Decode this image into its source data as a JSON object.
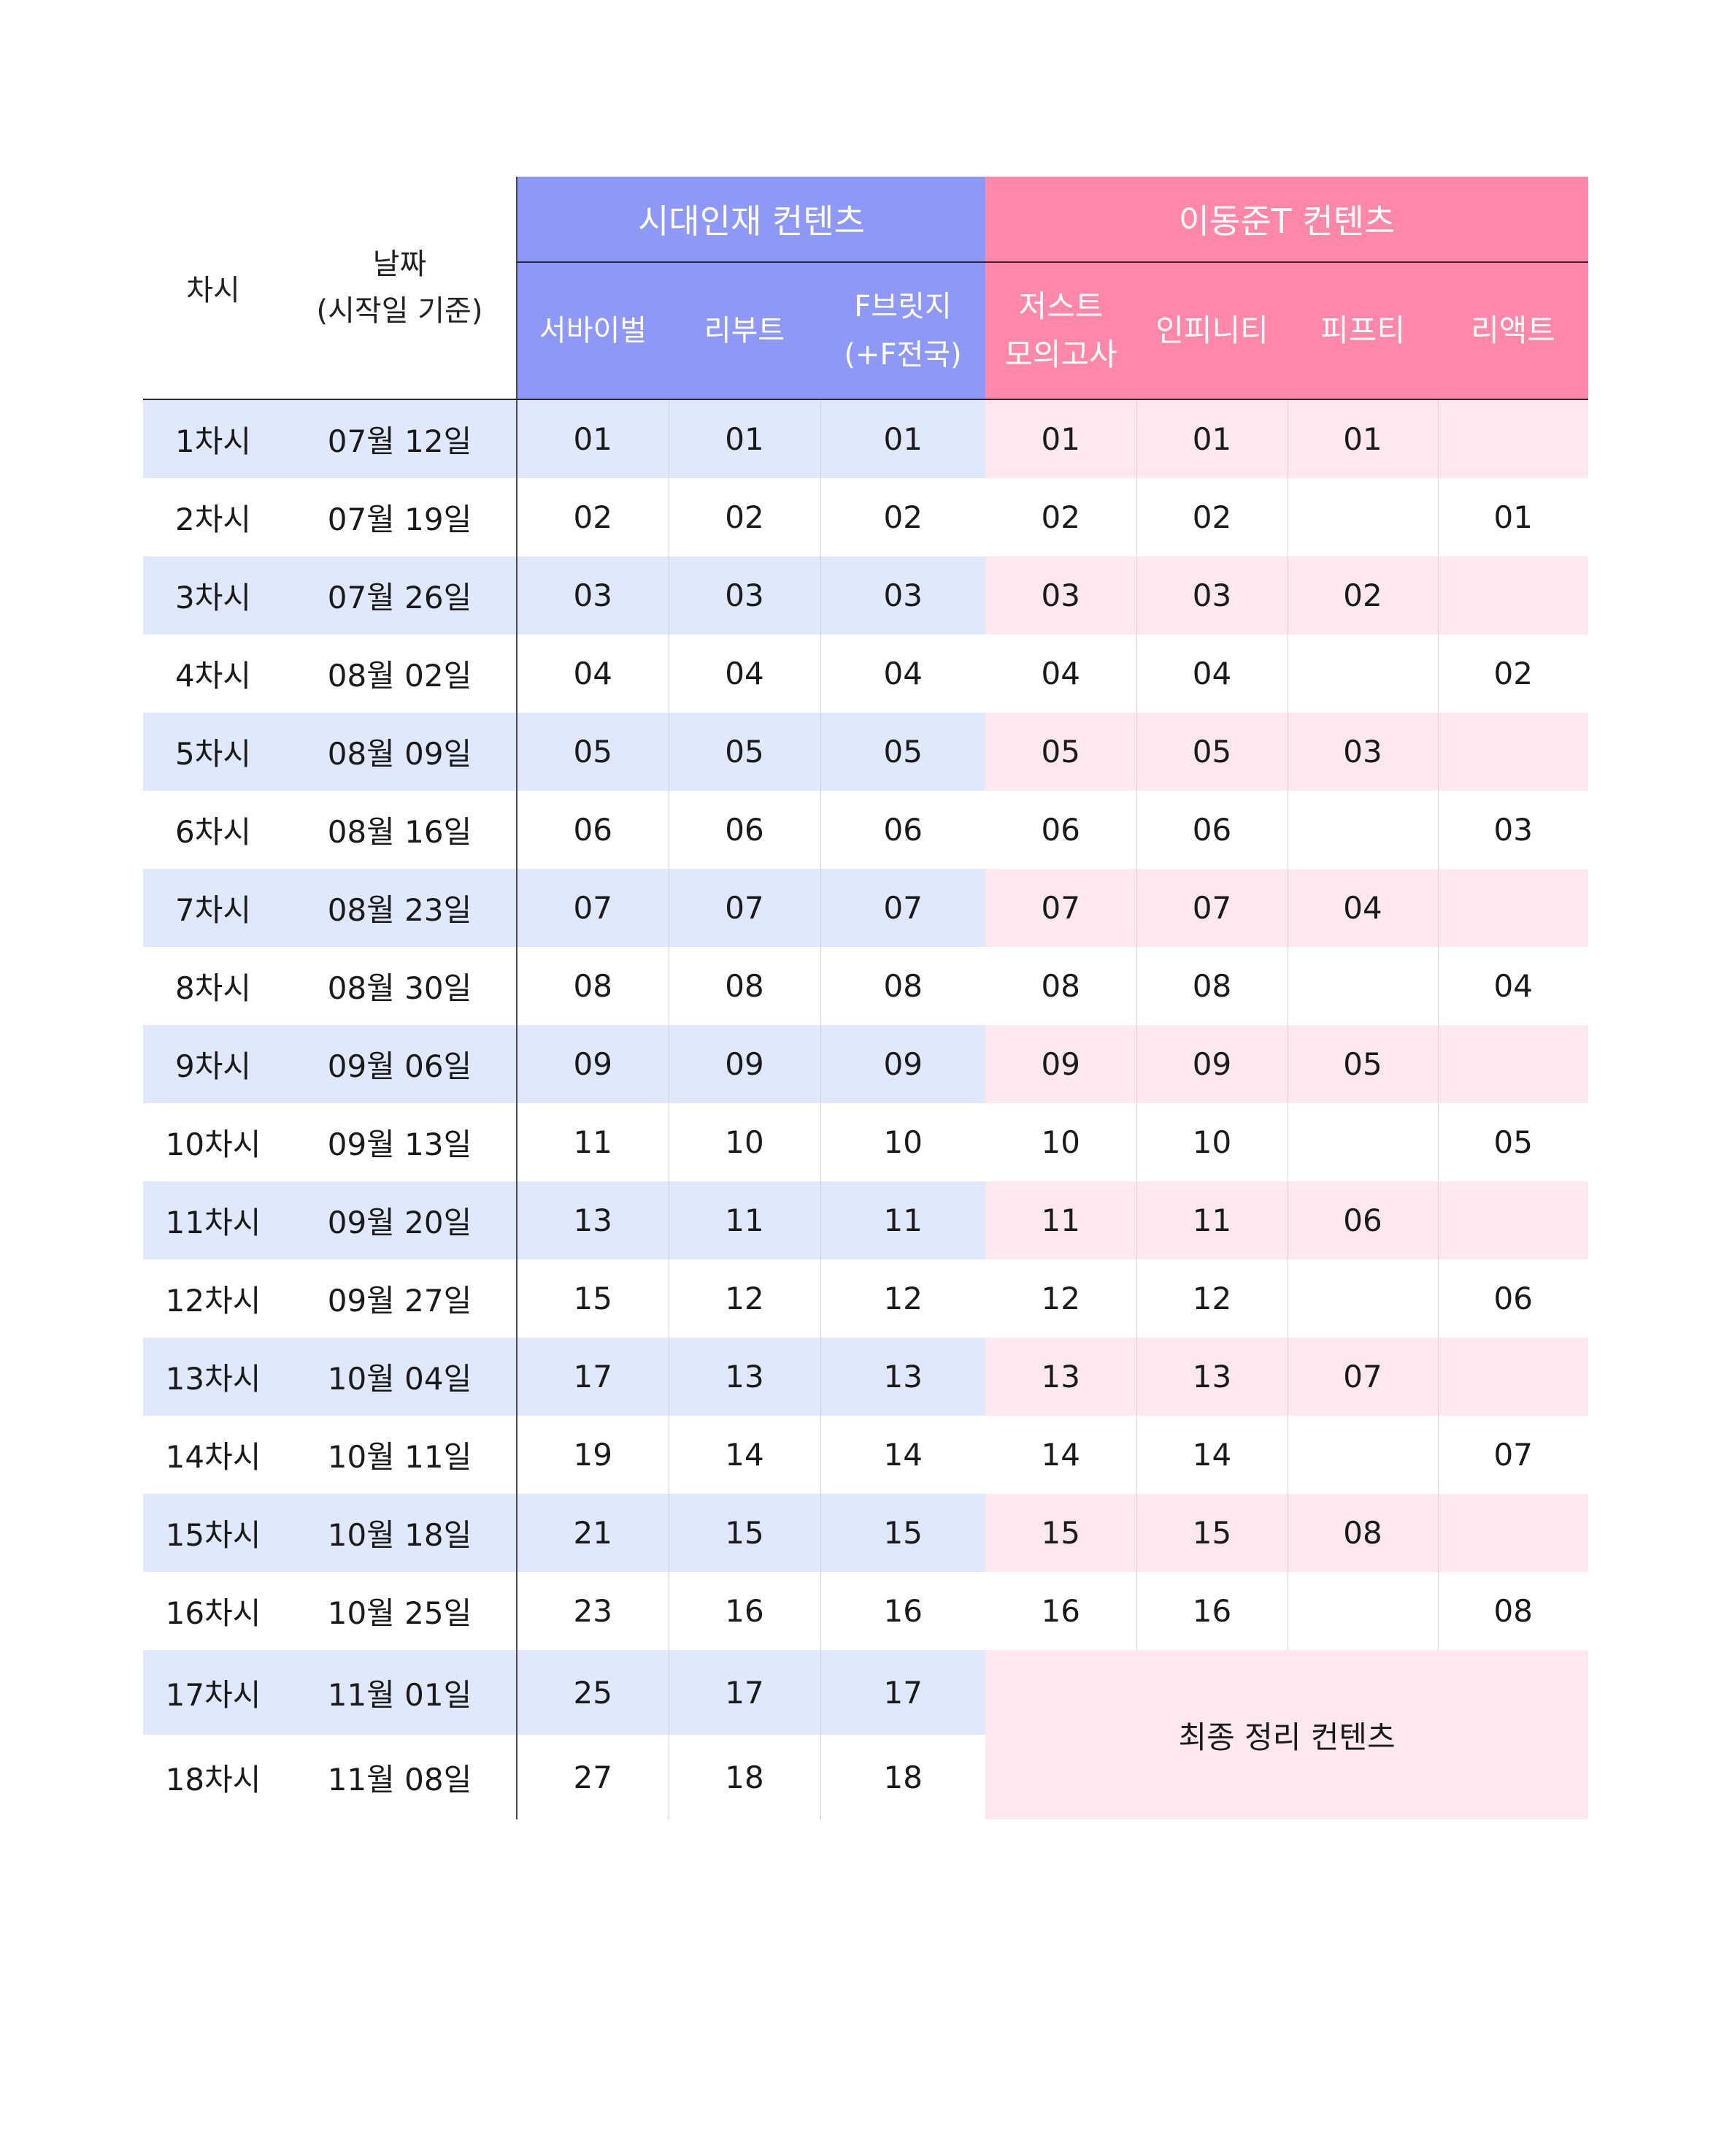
{
  "header": {
    "col_session": "차시",
    "col_date_line1": "날짜",
    "col_date_line2": "(시작일 기준)",
    "group_a": "시대인재 컨텐츠",
    "group_b": "이동준T 컨텐츠",
    "sub_a": [
      "서바이벌",
      "리부트",
      "F브릿지",
      "(+F전국)"
    ],
    "sub_b": [
      "저스트",
      "모의고사",
      "인피니티",
      "피프티",
      "리액트"
    ]
  },
  "rows": [
    {
      "session": "1차시",
      "date": "07월 12일",
      "a": [
        "01",
        "01",
        "01"
      ],
      "b": [
        "01",
        "01",
        "01",
        ""
      ]
    },
    {
      "session": "2차시",
      "date": "07월 19일",
      "a": [
        "02",
        "02",
        "02"
      ],
      "b": [
        "02",
        "02",
        "",
        "01"
      ]
    },
    {
      "session": "3차시",
      "date": "07월 26일",
      "a": [
        "03",
        "03",
        "03"
      ],
      "b": [
        "03",
        "03",
        "02",
        ""
      ]
    },
    {
      "session": "4차시",
      "date": "08월 02일",
      "a": [
        "04",
        "04",
        "04"
      ],
      "b": [
        "04",
        "04",
        "",
        "02"
      ]
    },
    {
      "session": "5차시",
      "date": "08월 09일",
      "a": [
        "05",
        "05",
        "05"
      ],
      "b": [
        "05",
        "05",
        "03",
        ""
      ]
    },
    {
      "session": "6차시",
      "date": "08월 16일",
      "a": [
        "06",
        "06",
        "06"
      ],
      "b": [
        "06",
        "06",
        "",
        "03"
      ]
    },
    {
      "session": "7차시",
      "date": "08월 23일",
      "a": [
        "07",
        "07",
        "07"
      ],
      "b": [
        "07",
        "07",
        "04",
        ""
      ]
    },
    {
      "session": "8차시",
      "date": "08월 30일",
      "a": [
        "08",
        "08",
        "08"
      ],
      "b": [
        "08",
        "08",
        "",
        "04"
      ]
    },
    {
      "session": "9차시",
      "date": "09월 06일",
      "a": [
        "09",
        "09",
        "09"
      ],
      "b": [
        "09",
        "09",
        "05",
        ""
      ]
    },
    {
      "session": "10차시",
      "date": "09월 13일",
      "a": [
        "11",
        "10",
        "10"
      ],
      "b": [
        "10",
        "10",
        "",
        "05"
      ]
    },
    {
      "session": "11차시",
      "date": "09월 20일",
      "a": [
        "13",
        "11",
        "11"
      ],
      "b": [
        "11",
        "11",
        "06",
        ""
      ]
    },
    {
      "session": "12차시",
      "date": "09월 27일",
      "a": [
        "15",
        "12",
        "12"
      ],
      "b": [
        "12",
        "12",
        "",
        "06"
      ]
    },
    {
      "session": "13차시",
      "date": "10월 04일",
      "a": [
        "17",
        "13",
        "13"
      ],
      "b": [
        "13",
        "13",
        "07",
        ""
      ]
    },
    {
      "session": "14차시",
      "date": "10월 11일",
      "a": [
        "19",
        "14",
        "14"
      ],
      "b": [
        "14",
        "14",
        "",
        "07"
      ]
    },
    {
      "session": "15차시",
      "date": "10월 18일",
      "a": [
        "21",
        "15",
        "15"
      ],
      "b": [
        "15",
        "15",
        "08",
        ""
      ]
    },
    {
      "session": "16차시",
      "date": "10월 25일",
      "a": [
        "23",
        "16",
        "16"
      ],
      "b": [
        "16",
        "16",
        "",
        "08"
      ]
    },
    {
      "session": "17차시",
      "date": "11월 01일",
      "a": [
        "25",
        "17",
        "17"
      ]
    },
    {
      "session": "18차시",
      "date": "11월 08일",
      "a": [
        "27",
        "18",
        "18"
      ]
    }
  ],
  "final_label": "최종 정리 컨텐츠",
  "colors": {
    "group_a": "#8e99f7",
    "group_b": "#fe87aa",
    "row_a": "#dfe9fb",
    "row_b": "#fde8ee"
  }
}
